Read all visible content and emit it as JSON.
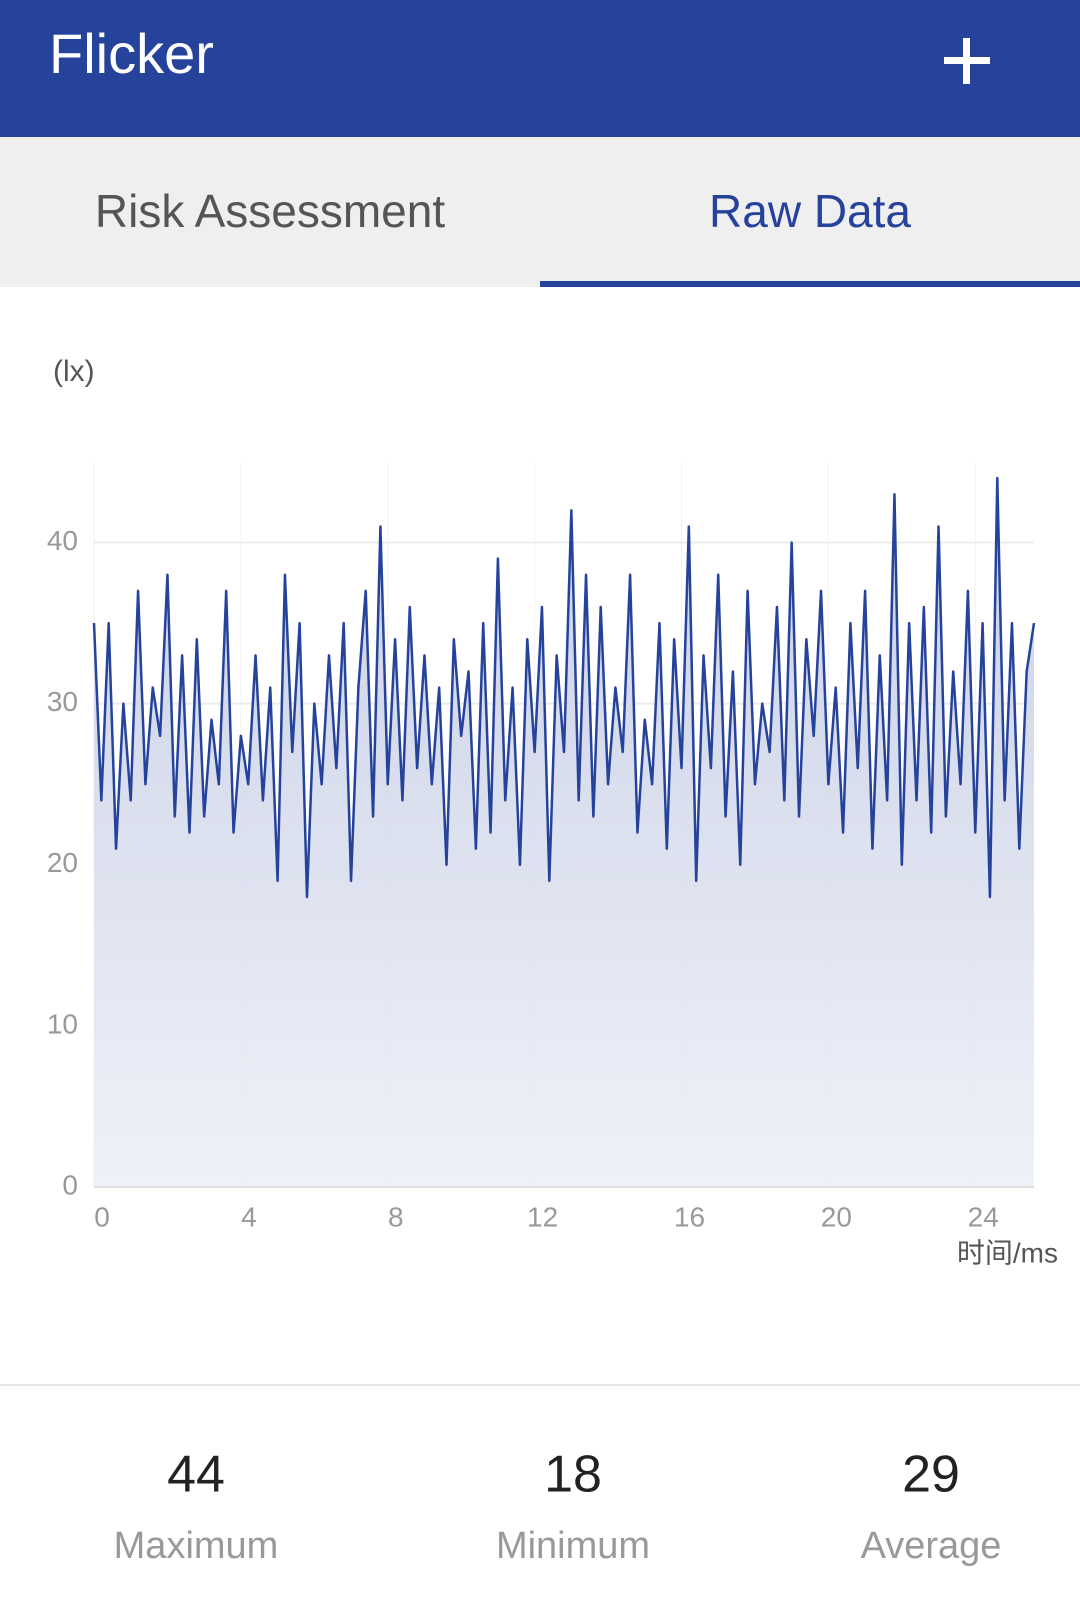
{
  "header": {
    "title": "Flicker"
  },
  "tabs": [
    "Risk Assessment",
    "Raw Data"
  ],
  "chart_data": {
    "type": "area",
    "y_label": "(lx)",
    "x_label": "时间/ms",
    "x": [
      0,
      0.2,
      0.4,
      0.6,
      0.8,
      1,
      1.2,
      1.4,
      1.6,
      1.8,
      2,
      2.2,
      2.4,
      2.6,
      2.8,
      3,
      3.2,
      3.4,
      3.6,
      3.8,
      4,
      4.2,
      4.4,
      4.6,
      4.8,
      5,
      5.2,
      5.4,
      5.6,
      5.8,
      6,
      6.2,
      6.4,
      6.6,
      6.8,
      7,
      7.2,
      7.4,
      7.6,
      7.8,
      8,
      8.2,
      8.4,
      8.6,
      8.8,
      9,
      9.2,
      9.4,
      9.6,
      9.8,
      10,
      10.2,
      10.4,
      10.6,
      10.8,
      11,
      11.2,
      11.4,
      11.6,
      11.8,
      12,
      12.2,
      12.4,
      12.6,
      12.8,
      13,
      13.2,
      13.4,
      13.6,
      13.8,
      14,
      14.2,
      14.4,
      14.6,
      14.8,
      15,
      15.2,
      15.4,
      15.6,
      15.8,
      16,
      16.2,
      16.4,
      16.6,
      16.8,
      17,
      17.2,
      17.4,
      17.6,
      17.8,
      18,
      18.2,
      18.4,
      18.6,
      18.8,
      19,
      19.2,
      19.4,
      19.6,
      19.8,
      20,
      20.2,
      20.4,
      20.6,
      20.8,
      21,
      21.2,
      21.4,
      21.6,
      21.8,
      22,
      22.2,
      22.4,
      22.6,
      22.8,
      23,
      23.2,
      23.4,
      23.6,
      23.8,
      24,
      24.2,
      24.4,
      24.6,
      24.8,
      25,
      25.2,
      25.4,
      25.6
    ],
    "series": [
      {
        "color": "#26439c",
        "values": [
          35,
          24,
          35,
          21,
          30,
          24,
          37,
          25,
          31,
          28,
          38,
          23,
          33,
          22,
          34,
          23,
          29,
          25,
          37,
          22,
          28,
          25,
          33,
          24,
          31,
          19,
          38,
          27,
          35,
          18,
          30,
          25,
          33,
          26,
          35,
          19,
          31,
          37,
          23,
          41,
          25,
          34,
          24,
          36,
          26,
          33,
          25,
          31,
          20,
          34,
          28,
          32,
          21,
          35,
          22,
          39,
          24,
          31,
          20,
          34,
          27,
          36,
          19,
          33,
          27,
          42,
          24,
          38,
          23,
          36,
          25,
          31,
          27,
          38,
          22,
          29,
          25,
          35,
          21,
          34,
          26,
          41,
          19,
          33,
          26,
          38,
          23,
          32,
          20,
          37,
          25,
          30,
          27,
          36,
          24,
          40,
          23,
          34,
          28,
          37,
          25,
          31,
          22,
          35,
          26,
          37,
          21,
          33,
          24,
          43,
          20,
          35,
          24,
          36,
          22,
          41,
          23,
          32,
          25,
          37,
          22,
          35,
          18,
          44,
          24,
          35,
          21,
          32,
          35
        ]
      }
    ],
    "xlim": [
      0,
      25.6
    ],
    "ylim": [
      0,
      45
    ],
    "xticks": [
      0,
      4,
      8,
      12,
      16,
      20,
      24
    ],
    "yticks": [
      0,
      10,
      20,
      30,
      40
    ],
    "grid": true
  },
  "stats": [
    {
      "value": 44,
      "label": "Maximum"
    },
    {
      "value": 18,
      "label": "Minimum"
    },
    {
      "value": 29,
      "label": "Average"
    }
  ]
}
